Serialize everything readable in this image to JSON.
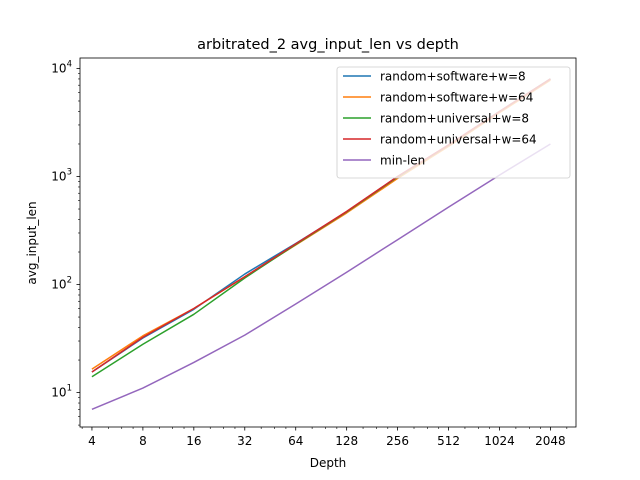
{
  "chart_data": {
    "type": "line",
    "title": "arbitrated_2 avg_input_len vs depth",
    "xlabel": "Depth",
    "ylabel": "avg_input_len",
    "x_scale": "log2",
    "y_scale": "log10",
    "xlim": [
      3.4,
      2900
    ],
    "ylim": [
      4.8,
      12500
    ],
    "x_ticks": [
      {
        "value": 4,
        "label": "4"
      },
      {
        "value": 8,
        "label": "8"
      },
      {
        "value": 16,
        "label": "16"
      },
      {
        "value": 32,
        "label": "32"
      },
      {
        "value": 64,
        "label": "64"
      },
      {
        "value": 128,
        "label": "128"
      },
      {
        "value": 256,
        "label": "256"
      },
      {
        "value": 512,
        "label": "512"
      },
      {
        "value": 1024,
        "label": "1024"
      },
      {
        "value": 2048,
        "label": "2048"
      }
    ],
    "y_ticks": [
      {
        "value": 10,
        "base": "10",
        "exp": "1"
      },
      {
        "value": 100,
        "base": "10",
        "exp": "2"
      },
      {
        "value": 1000,
        "base": "10",
        "exp": "3"
      },
      {
        "value": 10000,
        "base": "10",
        "exp": "4"
      }
    ],
    "legend_position": "top-right",
    "grid": false,
    "x": [
      4,
      8,
      16,
      32,
      64,
      128,
      256,
      512,
      1024,
      2048
    ],
    "series": [
      {
        "name": "random+software+w=8",
        "color": "#1f77b4",
        "values": [
          15.5,
          32,
          59,
          125,
          240,
          470,
          1000,
          1950,
          4000,
          8000
        ]
      },
      {
        "name": "random+software+w=64",
        "color": "#ff7f0e",
        "values": [
          16.5,
          33.5,
          60,
          118,
          232,
          460,
          960,
          1900,
          3900,
          7800
        ]
      },
      {
        "name": "random+universal+w=8",
        "color": "#2ca02c",
        "values": [
          14,
          28,
          53,
          115,
          235,
          470,
          990,
          1950,
          4000,
          8000
        ]
      },
      {
        "name": "random+universal+w=64",
        "color": "#d62728",
        "values": [
          15.5,
          32.5,
          60,
          118,
          238,
          475,
          1000,
          1960,
          4000,
          8000
        ]
      },
      {
        "name": "min-len",
        "color": "#9467bd",
        "values": [
          7,
          11,
          19,
          34,
          66,
          130,
          260,
          520,
          1030,
          2000
        ]
      }
    ]
  }
}
